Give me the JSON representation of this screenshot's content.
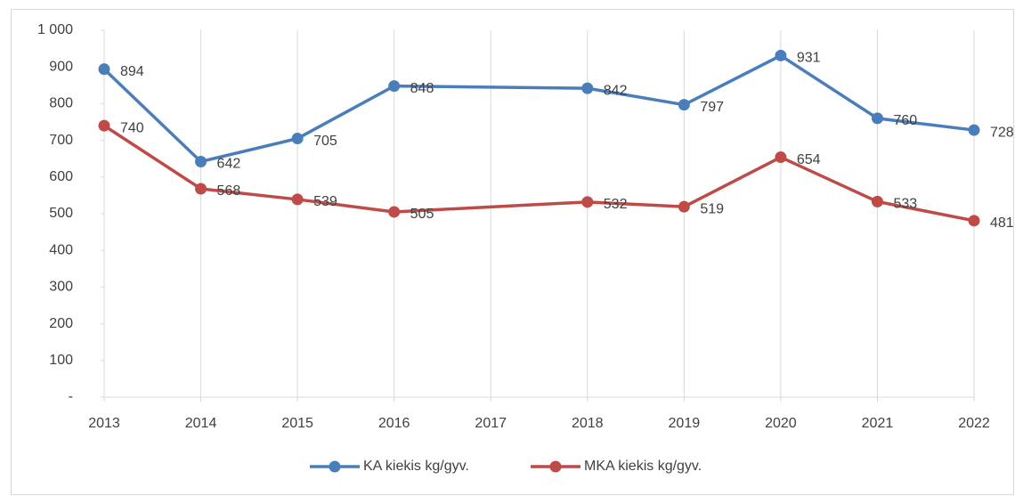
{
  "chart_data": {
    "type": "line",
    "x": [
      2013,
      2014,
      2015,
      2016,
      2018,
      2019,
      2020,
      2021,
      2022
    ],
    "series": [
      {
        "name": "KA kiekis kg/gyv.",
        "color": "#4a7ebb",
        "values": [
          894,
          642,
          705,
          848,
          842,
          797,
          931,
          760,
          728
        ]
      },
      {
        "name": "MKA kiekis kg/gyv.",
        "color": "#be4b48",
        "values": [
          740,
          568,
          539,
          505,
          532,
          519,
          654,
          533,
          481
        ]
      }
    ],
    "xlim": [
      2013,
      2022
    ],
    "xticks": [
      2013,
      2014,
      2015,
      2016,
      2017,
      2018,
      2019,
      2020,
      2021,
      2022
    ],
    "ylim": [
      0,
      1000
    ],
    "yticks": [
      {
        "value": 0,
        "label": "-"
      },
      100,
      200,
      300,
      400,
      500,
      600,
      700,
      800,
      900,
      {
        "value": 1000,
        "label": "1 000"
      }
    ],
    "grid": "x",
    "legend": "bottom"
  }
}
